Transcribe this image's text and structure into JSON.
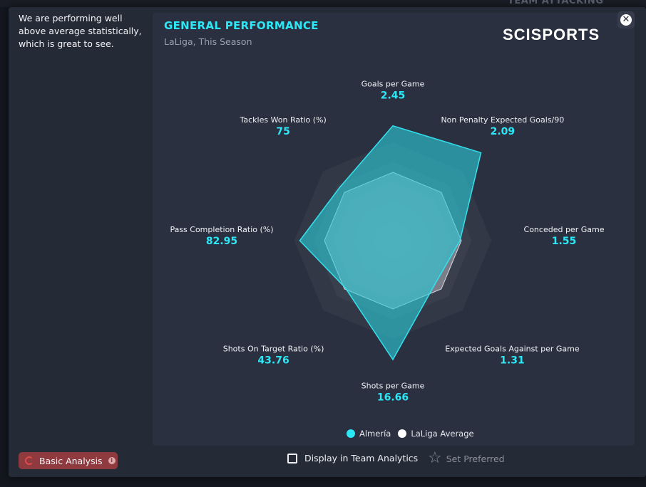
{
  "background": {
    "heading": "TEAM ATTACKING"
  },
  "description": "We are performing well above average statistically, which is great to see.",
  "card": {
    "title": "GENERAL PERFORMANCE",
    "subtitle": "LaLiga, This Season",
    "brand": "SCISPORTS"
  },
  "close": {
    "icon": "close-icon",
    "glyph": "✕"
  },
  "chart_data": {
    "type": "radar",
    "title": "GENERAL PERFORMANCE",
    "subtitle": "LaLiga, This Season",
    "axes": [
      {
        "label": "Goals per Game",
        "display": "2.45"
      },
      {
        "label": "Non Penalty Expected Goals/90",
        "display": "2.09"
      },
      {
        "label": "Conceded per Game",
        "display": "1.55"
      },
      {
        "label": "Expected Goals Against per Game",
        "display": "1.31"
      },
      {
        "label": "Shots per Game",
        "display": "16.66"
      },
      {
        "label": "Shots On Target Ratio (%)",
        "display": "43.76"
      },
      {
        "label": "Pass Completion Ratio (%)",
        "display": "82.95"
      },
      {
        "label": "Tackles Won Ratio (%)",
        "display": "75"
      }
    ],
    "scale": [
      0,
      1
    ],
    "rings": 5,
    "series": [
      {
        "name": "LaLiga Average",
        "color": "#c9cbd2",
        "values": [
          0.5,
          0.5,
          0.5,
          0.5,
          0.5,
          0.5,
          0.5,
          0.5
        ]
      },
      {
        "name": "Almería",
        "color": "#2cc9d6",
        "values": [
          0.84,
          0.91,
          0.49,
          0.44,
          0.87,
          0.49,
          0.68,
          0.55
        ]
      }
    ],
    "legend": [
      {
        "name": "Almería",
        "color": "#2ce8f6"
      },
      {
        "name": "LaLiga Average",
        "color": "#ffffff"
      }
    ]
  },
  "footer": {
    "basic_analysis": "Basic Analysis",
    "display_in_team_analytics": "Display in Team Analytics",
    "set_preferred": "Set Preferred"
  }
}
